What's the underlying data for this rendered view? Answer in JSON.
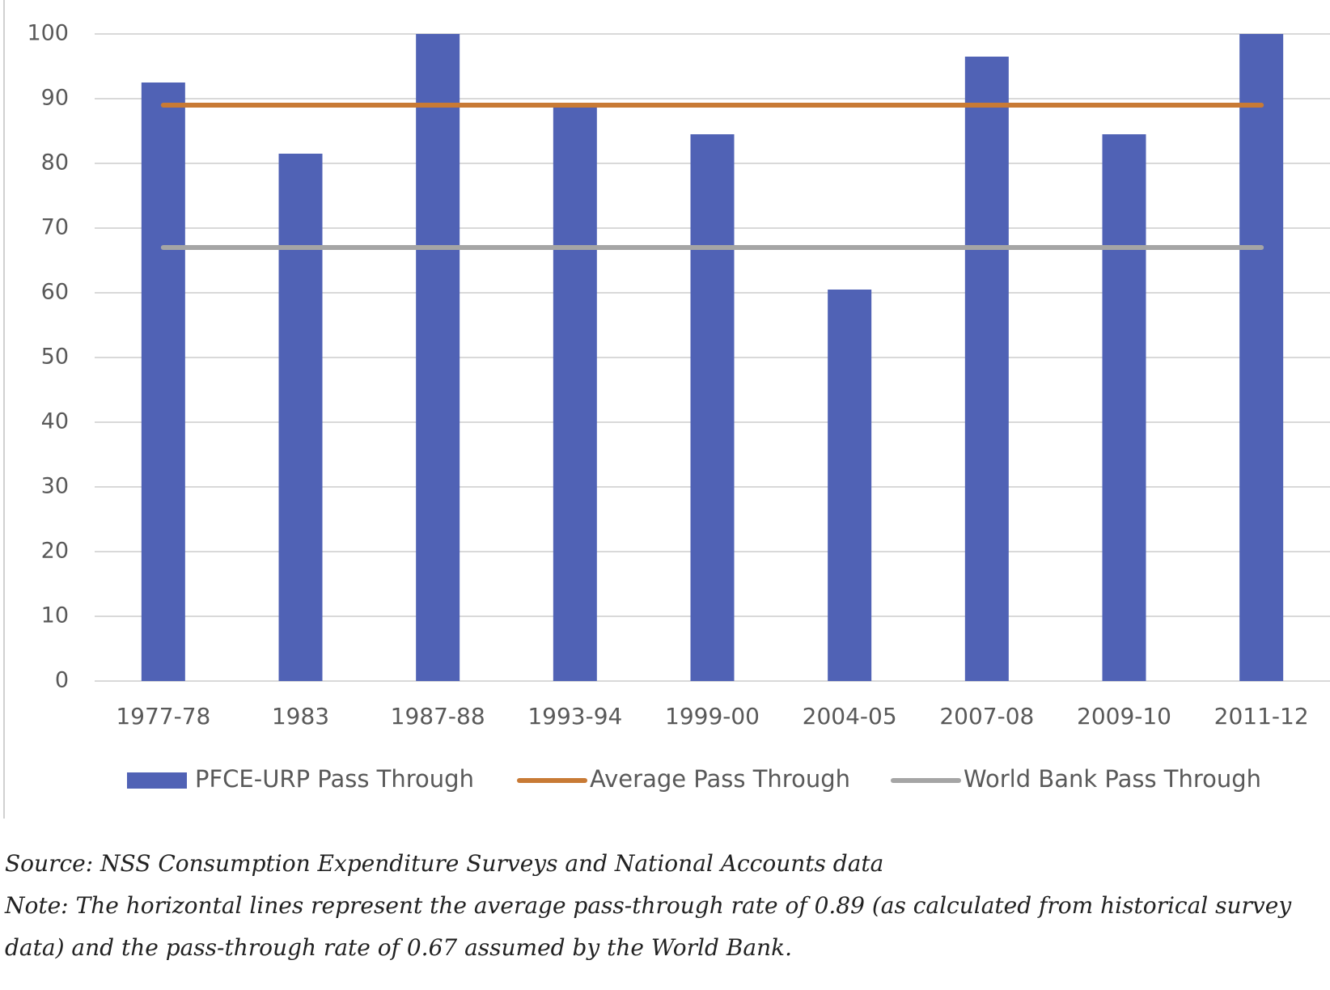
{
  "chart_data": {
    "type": "bar",
    "categories": [
      "1977-78",
      "1983",
      "1987-88",
      "1993-94",
      "1999-00",
      "2004-05",
      "2007-08",
      "2009-10",
      "2011-12"
    ],
    "series": [
      {
        "name": "PFCE-URP Pass Through",
        "kind": "bar",
        "color": "#5062b5",
        "values": [
          92.5,
          81.5,
          100,
          89,
          84.5,
          60.5,
          96.5,
          84.5,
          100
        ]
      },
      {
        "name": "Average Pass Through",
        "kind": "line",
        "color": "#c87a35",
        "values": [
          89,
          89,
          89,
          89,
          89,
          89,
          89,
          89,
          89
        ]
      },
      {
        "name": "World Bank Pass Through",
        "kind": "line",
        "color": "#a5a5a5",
        "values": [
          67,
          67,
          67,
          67,
          67,
          67,
          67,
          67,
          67
        ]
      }
    ],
    "ylim": [
      0,
      100
    ],
    "yticks": [
      0,
      10,
      20,
      30,
      40,
      50,
      60,
      70,
      80,
      90,
      100
    ],
    "grid": true,
    "legend": "bottom"
  },
  "notes": {
    "source": "Source: NSS Consumption Expenditure Surveys and National Accounts data",
    "note": "Note: The horizontal lines represent the average pass-through rate of 0.89 (as calculated from historical survey data) and the pass-through rate of 0.67 assumed by the World Bank."
  }
}
